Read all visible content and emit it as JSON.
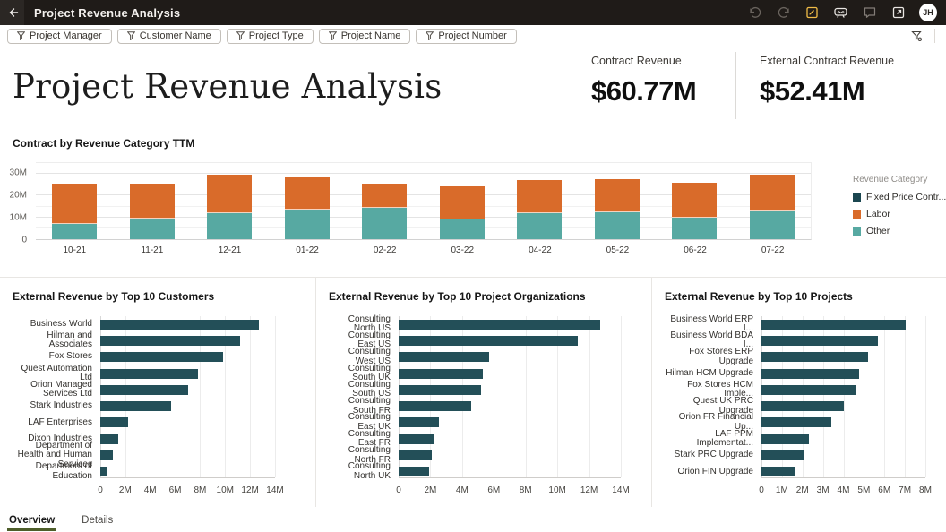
{
  "header": {
    "title": "Project Revenue Analysis",
    "icons": [
      "back-arrow",
      "undo",
      "redo",
      "edit",
      "present",
      "comment",
      "open-in-new"
    ],
    "avatar_initials": "JH"
  },
  "filter_bar": {
    "chips": [
      {
        "label": "Project Manager"
      },
      {
        "label": "Customer Name"
      },
      {
        "label": "Project Type"
      },
      {
        "label": "Project Name"
      },
      {
        "label": "Project Number"
      }
    ],
    "right_icon": "filter-settings"
  },
  "hero": {
    "title": "Project Revenue Analysis",
    "kpis": [
      {
        "label": "Contract Revenue",
        "value": "$60.77M"
      },
      {
        "label": "External Contract Revenue",
        "value": "$52.41M"
      }
    ]
  },
  "chart_data": [
    {
      "id": "contract-by-revenue-category-ttm",
      "type": "bar",
      "stacked": true,
      "title": "Contract by Revenue Category TTM",
      "legend_title": "Revenue Category",
      "legend_position": "right",
      "categories": [
        "10-21",
        "11-21",
        "12-21",
        "01-22",
        "02-22",
        "03-22",
        "04-22",
        "05-22",
        "06-22",
        "07-22"
      ],
      "series": [
        {
          "name": "Fixed Price Contr...",
          "color": "#1b4650",
          "values": [
            0,
            0,
            0,
            0,
            0,
            0,
            0,
            0,
            0,
            0
          ]
        },
        {
          "name": "Labor",
          "color": "#d96b2a",
          "values": [
            18.5,
            15.5,
            17.5,
            14.8,
            10.6,
            15.5,
            15.0,
            15.2,
            16.2,
            16.7
          ]
        },
        {
          "name": "Other",
          "color": "#57a9a2",
          "values": [
            7.0,
            9.5,
            12.0,
            13.5,
            14.4,
            9.0,
            12.0,
            12.3,
            9.8,
            12.8
          ]
        }
      ],
      "ylim": [
        0,
        35
      ],
      "grid_step": 5,
      "grid": true,
      "yticks": [
        {
          "v": 0,
          "label": "0"
        },
        {
          "v": 10,
          "label": "10M"
        },
        {
          "v": 20,
          "label": "20M"
        },
        {
          "v": 30,
          "label": "30M"
        }
      ]
    },
    {
      "id": "external-revenue-top10-customers",
      "type": "bar",
      "orientation": "horizontal",
      "title": "External Revenue by Top 10 Customers",
      "categories": [
        "Business World",
        "Hilman and Associates",
        "Fox Stores",
        "Quest Automation Ltd",
        "Orion Managed Services Ltd",
        "Stark Industries",
        "LAF Enterprises",
        "Dixon Industries",
        "Department of Health and Human Services",
        "Department of Education"
      ],
      "values": [
        12.7,
        11.2,
        9.8,
        7.8,
        7.0,
        5.7,
        2.2,
        1.4,
        1.0,
        0.6
      ],
      "bar_color": "#234f58",
      "xlim": [
        0,
        14
      ],
      "xtick_step": 2,
      "xtick_labels": [
        "0",
        "2M",
        "4M",
        "6M",
        "8M",
        "10M",
        "12M",
        "14M"
      ]
    },
    {
      "id": "external-revenue-top10-project-organizations",
      "type": "bar",
      "orientation": "horizontal",
      "title": "External Revenue by Top 10 Project Organizations",
      "categories": [
        "Consulting North US",
        "Consulting East US",
        "Consulting West US",
        "Consulting South UK",
        "Consulting South US",
        "Consulting South FR",
        "Consulting East UK",
        "Consulting East FR",
        "Consulting North FR",
        "Consulting North UK"
      ],
      "values": [
        12.7,
        11.3,
        5.7,
        5.3,
        5.2,
        4.6,
        2.55,
        2.2,
        2.1,
        1.9
      ],
      "bar_color": "#234f58",
      "xlim": [
        0,
        14
      ],
      "xtick_step": 2,
      "xtick_labels": [
        "0",
        "2M",
        "4M",
        "6M",
        "8M",
        "10M",
        "12M",
        "14M"
      ]
    },
    {
      "id": "external-revenue-top10-projects",
      "type": "bar",
      "orientation": "horizontal",
      "title": "External Revenue by Top 10 Projects",
      "categories": [
        "Business World ERP I...",
        "Business World BDA I...",
        "Fox Stores ERP Upgrade",
        "Hilman HCM Upgrade",
        "Fox Stores HCM Imple...",
        "Quest UK PRC Upgrade",
        "Orion FR Financial Up...",
        "LAF PPM Implementat...",
        "Stark PRC Upgrade",
        "Orion FIN Upgrade"
      ],
      "values": [
        7.05,
        5.7,
        5.2,
        4.75,
        4.6,
        4.0,
        3.4,
        2.3,
        2.1,
        1.6
      ],
      "bar_color": "#234f58",
      "xlim": [
        0,
        8
      ],
      "xtick_step": 1,
      "xtick_labels": [
        "0",
        "1M",
        "2M",
        "3M",
        "4M",
        "5M",
        "6M",
        "7M",
        "8M"
      ]
    }
  ],
  "footer": {
    "tabs": [
      {
        "label": "Overview",
        "active": true
      },
      {
        "label": "Details",
        "active": false
      }
    ]
  },
  "colors": {
    "header_bg": "#1f1b18",
    "edit_icon_gold": "#f0bc47",
    "labor_orange": "#d96b2a",
    "other_teal": "#57a9a2",
    "fixed_price_dark": "#1b4650",
    "hbar_dark_teal": "#234f58",
    "active_tab_underline": "#4e5e2a"
  }
}
